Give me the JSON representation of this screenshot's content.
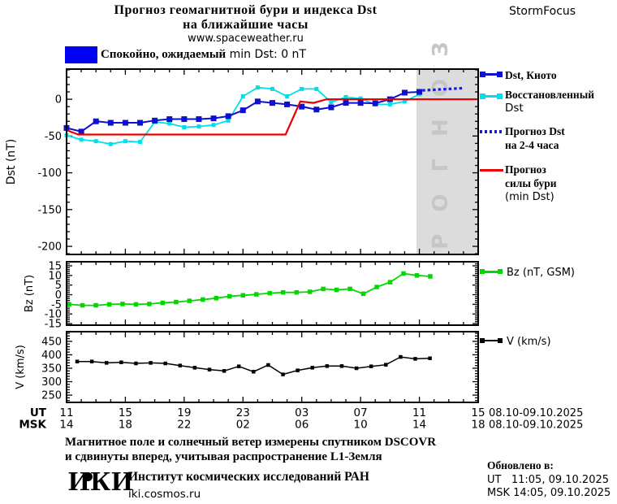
{
  "header": {
    "title_line1": "Прогноз геомагнитной бури и индекса Dst",
    "title_line2": "на ближайшие часы",
    "url": "www.spaceweather.ru",
    "brand": "StormFocus"
  },
  "status": {
    "swatch_color": "#0000f2",
    "text_main": "Спокойно, ожидаемый",
    "text_value": " min Dst: 0 nT"
  },
  "legend_dst": {
    "item1": "Dst, Киото",
    "item2_line1": "Восстановленный",
    "item2_line2": "Dst",
    "item3_line1": "Прогноз Dst",
    "item3_line2": "на 2-4 часа",
    "item4_line1": "Прогноз",
    "item4_line2": "силы бури",
    "item4_line3": "(min Dst)"
  },
  "legend_bz": "Bz (nT, GSM)",
  "legend_v": "V (km/s)",
  "footer": {
    "note_line1": "Магнитное поле и солнечный ветер измерены спутником DSCOVR",
    "note_line2": "и сдвинуты вперед, учитывая распространение L1-Земля",
    "logo": "ИКИ",
    "institute": "Институт космических исследований РАН",
    "site": "iki.cosmos.ru",
    "updated_label": "Обновлено в:",
    "updated_ut": "UT   11:05, 09.10.2025",
    "updated_msk": "MSK 14:05, 09.10.2025"
  },
  "colors": {
    "dst_kyoto": "#0f0fd0",
    "dst_reconstructed": "#00e0ea",
    "dst_forecast_dotted": "#1414ff",
    "storm_forecast_red": "#ea0000",
    "bz_green": "#00d800",
    "v_black": "#000000",
    "forecast_region_gray": "#dcdcdc",
    "watermark_gray": "#c6c6c6",
    "status_blue": "#0000f2"
  },
  "chart_data": {
    "type": "line",
    "x_unit": "hours since 11:00 UT 08.10.2025",
    "xlim_hours": [
      0,
      28
    ],
    "panels": [
      {
        "id": "dst",
        "ylabel": "Dst (nT)",
        "ylim": [
          -211,
          41
        ],
        "yticks": [
          0,
          -50,
          -100,
          -150,
          -200
        ],
        "ytick_minor": 10,
        "forecast_region": {
          "start_hour": 23.8,
          "watermark": "ПРОГНОЗ"
        },
        "series": [
          {
            "name": "Восстановленный Dst",
            "color": "#00e0ea",
            "marker": "square",
            "marker_size": 5,
            "width": 1.8,
            "x_start": 0,
            "x_step": 1,
            "values": [
              -49,
              -55,
              -57,
              -61,
              -57,
              -58,
              -31,
              -33,
              -38,
              -37,
              -35,
              -29,
              4,
              16,
              14,
              4,
              14,
              14,
              -4,
              3,
              1,
              -7,
              -7,
              -3,
              7
            ]
          },
          {
            "name": "Dst, Киото",
            "color": "#0f0fd0",
            "marker": "square",
            "marker_size": 7,
            "width": 2,
            "x_start": 0,
            "x_step": 1,
            "values": [
              -39,
              -44,
              -30,
              -32,
              -32,
              -32,
              -29,
              -27,
              -27,
              -27,
              -26,
              -23,
              -15,
              -3,
              -5,
              -7,
              -10,
              -14,
              -11,
              -5,
              -5,
              -5.5,
              0,
              9,
              10
            ]
          },
          {
            "name": "Прогноз силы бури (min Dst)",
            "color": "#ea0000",
            "marker": "none",
            "width": 2.2,
            "x": [
              0,
              0.8,
              3,
              14.9,
              15.9,
              16.8,
              17.7,
              28
            ],
            "values": [
              -42,
              -48,
              -48,
              -48,
              -3,
              -5,
              0,
              0
            ]
          },
          {
            "name": "Прогноз Dst на 2-4 часа",
            "color": "#1414ff",
            "marker": "dotted",
            "width": 3.2,
            "x": [
              24.2,
              26.9
            ],
            "values": [
              12,
              15
            ]
          }
        ]
      },
      {
        "id": "bz",
        "ylabel": "Bz (nT)",
        "legend": "Bz (nT, GSM)",
        "ylim": [
          -15.8,
          17.1
        ],
        "yticks": [
          15,
          10,
          5,
          0,
          -5,
          -10,
          -15
        ],
        "ytick_minor": 1,
        "series": [
          {
            "name": "Bz (nT, GSM)",
            "color": "#00d800",
            "marker": "square",
            "marker_size": 5.5,
            "width": 1.8,
            "x_start": 0.17,
            "x_step": 0.91,
            "values": [
              -5,
              -5.5,
              -5.5,
              -5,
              -4.8,
              -5,
              -4.8,
              -4.2,
              -3.8,
              -3.2,
              -2.5,
              -1.8,
              -0.8,
              -0.3,
              0.2,
              0.8,
              1.2,
              1.2,
              1.5,
              3,
              2.5,
              3,
              0.5,
              4,
              6.5,
              11,
              10,
              9.5
            ]
          }
        ]
      },
      {
        "id": "v",
        "ylabel": "V (km/s)",
        "legend": "V (km/s)",
        "ylim": [
          223,
          486
        ],
        "yticks": [
          450,
          400,
          350,
          300,
          250
        ],
        "ytick_minor": 10,
        "series": [
          {
            "name": "V (km/s)",
            "color": "#000000",
            "marker": "square",
            "marker_size": 4.5,
            "width": 1.5,
            "x_start": 0.72,
            "x_step": 1,
            "values": [
              375,
              375,
              370,
              372,
              368,
              370,
              368,
              360,
              352,
              345,
              340,
              357,
              337,
              362,
              327,
              342,
              352,
              358,
              358,
              350,
              357,
              363,
              392,
              385,
              387
            ]
          }
        ]
      }
    ],
    "xaxis": {
      "xticks_hours": [
        0,
        4,
        8,
        12,
        16,
        20,
        24,
        28
      ],
      "minor_step_hours": 1,
      "ut_prefix": "UT",
      "msk_prefix": "MSK",
      "ut_labels": [
        "11",
        "15",
        "19",
        "23",
        "03",
        "07",
        "11",
        "15"
      ],
      "msk_labels": [
        "14",
        "18",
        "22",
        "02",
        "06",
        "10",
        "14",
        "18"
      ],
      "date_ut": "08.10-09.10.2025",
      "date_msk": "08.10-09.10.2025"
    }
  }
}
